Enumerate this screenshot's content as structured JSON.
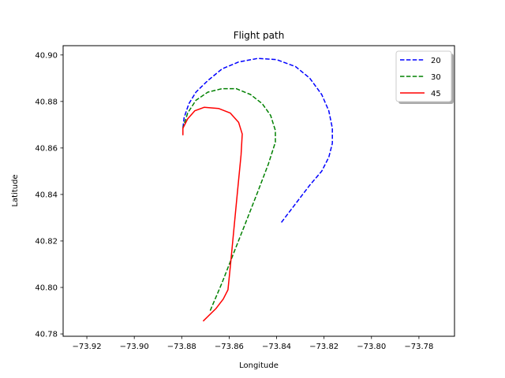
{
  "chart_data": {
    "type": "line",
    "title": "Flight path",
    "xlabel": "Longitude",
    "ylabel": "Latitude",
    "xlim": [
      -73.93,
      -73.765
    ],
    "ylim": [
      40.779,
      40.904
    ],
    "x_ticks": [
      "−73.92",
      "−73.90",
      "−73.88",
      "−73.86",
      "−73.84",
      "−73.82",
      "−73.80",
      "−73.78"
    ],
    "x_tick_values": [
      -73.92,
      -73.9,
      -73.88,
      -73.86,
      -73.84,
      -73.82,
      -73.8,
      -73.78
    ],
    "y_ticks": [
      "40.78",
      "40.80",
      "40.82",
      "40.84",
      "40.86",
      "40.88",
      "40.90"
    ],
    "y_tick_values": [
      40.78,
      40.8,
      40.82,
      40.84,
      40.86,
      40.88,
      40.9
    ],
    "grid": false,
    "legend_position": "top-right",
    "series": [
      {
        "name": "20",
        "color": "#0000ff",
        "style": "dashed",
        "points": [
          [
            -73.838,
            40.828
          ],
          [
            -73.832,
            40.836
          ],
          [
            -73.826,
            40.844
          ],
          [
            -73.821,
            40.85
          ],
          [
            -73.818,
            40.856
          ],
          [
            -73.8165,
            40.862
          ],
          [
            -73.8165,
            40.8685
          ],
          [
            -73.818,
            40.876
          ],
          [
            -73.821,
            40.883
          ],
          [
            -73.826,
            40.89
          ],
          [
            -73.832,
            40.895
          ],
          [
            -73.84,
            40.898
          ],
          [
            -73.848,
            40.8985
          ],
          [
            -73.856,
            40.897
          ],
          [
            -73.863,
            40.894
          ],
          [
            -73.869,
            40.889
          ],
          [
            -73.874,
            40.884
          ],
          [
            -73.877,
            40.879
          ],
          [
            -73.879,
            40.873
          ],
          [
            -73.8795,
            40.8685
          ]
        ]
      },
      {
        "name": "30",
        "color": "#008000",
        "style": "dashed",
        "points": [
          [
            -73.868,
            40.79
          ],
          [
            -73.863,
            40.802
          ],
          [
            -73.858,
            40.815
          ],
          [
            -73.853,
            40.828
          ],
          [
            -73.848,
            40.841
          ],
          [
            -73.8435,
            40.853
          ],
          [
            -73.8405,
            40.8625
          ],
          [
            -73.8405,
            40.8675
          ],
          [
            -73.8425,
            40.874
          ],
          [
            -73.846,
            40.879
          ],
          [
            -73.851,
            40.883
          ],
          [
            -73.857,
            40.8855
          ],
          [
            -73.863,
            40.8855
          ],
          [
            -73.869,
            40.884
          ],
          [
            -73.874,
            40.8805
          ],
          [
            -73.8775,
            40.875
          ],
          [
            -73.8795,
            40.8685
          ]
        ]
      },
      {
        "name": "45",
        "color": "#ff0000",
        "style": "solid",
        "points": [
          [
            -73.871,
            40.7855
          ],
          [
            -73.8655,
            40.791
          ],
          [
            -73.8625,
            40.795
          ],
          [
            -73.8605,
            40.799
          ],
          [
            -73.8595,
            40.809
          ],
          [
            -73.858,
            40.825
          ],
          [
            -73.8565,
            40.841
          ],
          [
            -73.855,
            40.857
          ],
          [
            -73.8545,
            40.866
          ],
          [
            -73.856,
            40.871
          ],
          [
            -73.8595,
            40.875
          ],
          [
            -73.8645,
            40.877
          ],
          [
            -73.8705,
            40.8775
          ],
          [
            -73.8745,
            40.876
          ],
          [
            -73.8775,
            40.8725
          ],
          [
            -73.8795,
            40.8685
          ],
          [
            -73.8795,
            40.8655
          ]
        ]
      }
    ]
  }
}
